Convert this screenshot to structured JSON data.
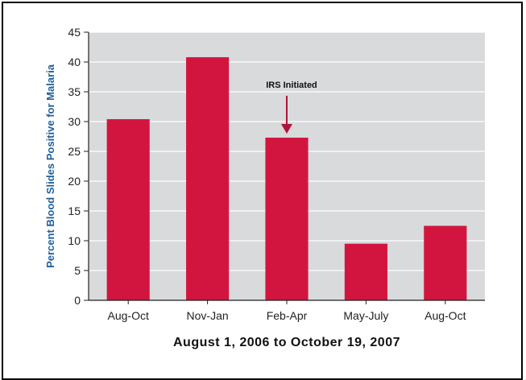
{
  "chart_data": {
    "type": "bar",
    "categories": [
      "Aug-Oct",
      "Nov-Jan",
      "Feb-Apr",
      "May-July",
      "Aug-Oct"
    ],
    "values": [
      30.4,
      40.8,
      27.3,
      9.5,
      12.5
    ],
    "title": "",
    "xlabel": "August 1, 2006 to October 19, 2007",
    "ylabel": "Percent Blood Slides Positive for Malaria",
    "ylim": [
      0,
      45
    ],
    "yticks": [
      0,
      5,
      10,
      15,
      20,
      25,
      30,
      35,
      40,
      45
    ],
    "grid": "horizontal",
    "annotations": [
      {
        "text": "IRS Initiated",
        "category_index": 2,
        "type": "arrow-down"
      }
    ],
    "colors": {
      "bar": "#d2153f",
      "plot_background": "#d9dadc",
      "grid": "#ffffff",
      "arrow": "#b01438",
      "ylabel": "#1f5f9a"
    }
  }
}
